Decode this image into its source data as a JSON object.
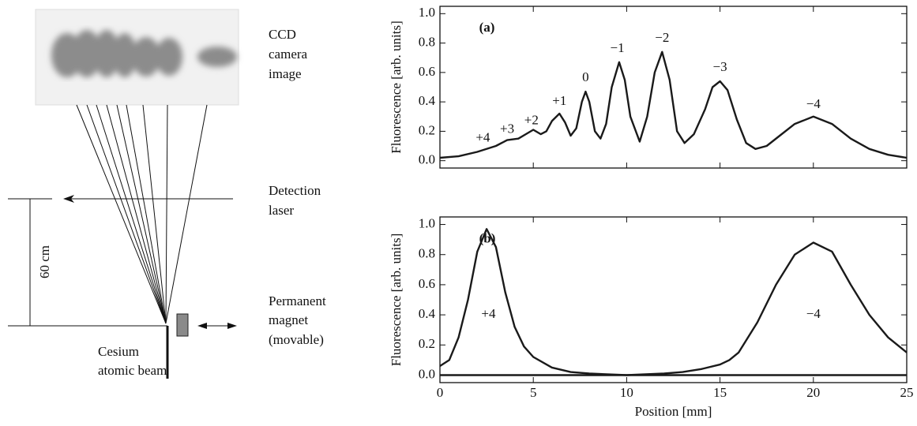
{
  "diagram": {
    "ccd_label": [
      "CCD",
      "camera",
      "image"
    ],
    "laser_label": [
      "Detection",
      "laser"
    ],
    "magnet_label": [
      "Permanent",
      "magnet",
      "(movable)"
    ],
    "beam_label": [
      "Cesium",
      "atomic beam"
    ],
    "distance_label": "60 cm"
  },
  "chart_data": [
    {
      "type": "line",
      "panel_label": "(a)",
      "ylabel": "Fluorescence [arb. units]",
      "xlim": [
        0,
        25
      ],
      "ylim": [
        -0.05,
        1.05
      ],
      "xticks": [
        0,
        5,
        10,
        15,
        20,
        25
      ],
      "xtick_labels": false,
      "yticks": [
        {
          "value": 0,
          "label": "0.0"
        },
        0.2,
        0.4,
        0.6,
        0.8,
        {
          "value": 1,
          "label": "1.0"
        }
      ],
      "annotations": [
        "+4",
        "+3",
        "+2",
        "+1",
        "0",
        "−1",
        "−2",
        "−3",
        "−4"
      ],
      "series": [
        {
          "color": "#1a1a1a",
          "x": [
            0,
            1,
            2,
            3,
            3.6,
            4.2,
            4.6,
            5,
            5.4,
            5.7,
            6,
            6.4,
            6.7,
            7,
            7.3,
            7.6,
            7.8,
            8,
            8.3,
            8.6,
            8.9,
            9.2,
            9.6,
            9.9,
            10.2,
            10.7,
            11.1,
            11.5,
            11.9,
            12.3,
            12.7,
            13.1,
            13.6,
            14.2,
            14.6,
            15,
            15.4,
            15.9,
            16.4,
            16.9,
            17.5,
            18.2,
            19,
            20,
            21,
            22,
            23,
            24,
            25
          ],
          "values": [
            0.02,
            0.03,
            0.06,
            0.1,
            0.14,
            0.15,
            0.18,
            0.21,
            0.18,
            0.2,
            0.27,
            0.32,
            0.26,
            0.17,
            0.22,
            0.4,
            0.47,
            0.4,
            0.2,
            0.15,
            0.25,
            0.5,
            0.67,
            0.55,
            0.3,
            0.13,
            0.3,
            0.6,
            0.74,
            0.55,
            0.2,
            0.12,
            0.18,
            0.35,
            0.5,
            0.54,
            0.48,
            0.28,
            0.12,
            0.08,
            0.1,
            0.17,
            0.25,
            0.3,
            0.25,
            0.15,
            0.08,
            0.04,
            0.02
          ]
        }
      ]
    },
    {
      "type": "line",
      "panel_label": "(b)",
      "ylabel": "Fluorescence [arb. units]",
      "xlabel": "Position [mm]",
      "xlim": [
        0,
        25
      ],
      "ylim": [
        -0.05,
        1.05
      ],
      "xticks": [
        0,
        5,
        10,
        15,
        20,
        25
      ],
      "xtick_labels": true,
      "yticks": [
        {
          "value": 0,
          "label": "0.0"
        },
        0.2,
        0.4,
        0.6,
        0.8,
        {
          "value": 1,
          "label": "1.0"
        }
      ],
      "annotations": [
        "+4",
        "−4"
      ],
      "series": [
        {
          "color": "#1a1a1a",
          "x": [
            0,
            0.5,
            1,
            1.5,
            2,
            2.5,
            3,
            3.5,
            4,
            4.5,
            5,
            6,
            7,
            8,
            10,
            12,
            13,
            14,
            15,
            15.5,
            16,
            17,
            18,
            19,
            20,
            21,
            22,
            23,
            24,
            25
          ],
          "values": [
            0.06,
            0.1,
            0.25,
            0.5,
            0.82,
            0.97,
            0.85,
            0.55,
            0.32,
            0.19,
            0.12,
            0.05,
            0.02,
            0.01,
            0,
            0.01,
            0.02,
            0.04,
            0.07,
            0.1,
            0.15,
            0.35,
            0.6,
            0.8,
            0.88,
            0.82,
            0.6,
            0.4,
            0.25,
            0.15
          ]
        },
        {
          "color": "#1a1a1a",
          "x": [
            0,
            25
          ],
          "values": [
            0,
            0
          ]
        }
      ]
    }
  ]
}
